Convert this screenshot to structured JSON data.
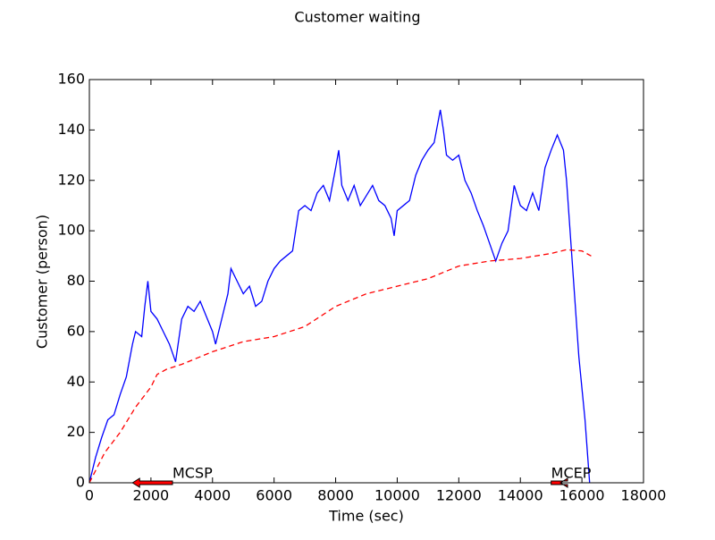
{
  "chart_data": {
    "type": "line",
    "title": "Customer waiting",
    "xlabel": "Time (sec)",
    "ylabel": "Customer (person)",
    "xlim": [
      0,
      18000
    ],
    "xticks": [
      0,
      2000,
      4000,
      6000,
      8000,
      10000,
      12000,
      14000,
      16000,
      18000
    ],
    "ylim": [
      0,
      160
    ],
    "yticks": [
      0,
      20,
      40,
      60,
      80,
      100,
      120,
      140,
      160
    ],
    "grid": false,
    "series": [
      {
        "color": "#0000ff",
        "dash": false,
        "x": [
          0,
          200,
          400,
          600,
          800,
          1000,
          1200,
          1400,
          1500,
          1700,
          1800,
          1900,
          2000,
          2200,
          2400,
          2600,
          2800,
          3000,
          3200,
          3400,
          3600,
          3800,
          4000,
          4100,
          4300,
          4500,
          4600,
          4800,
          5000,
          5200,
          5400,
          5600,
          5800,
          6000,
          6200,
          6400,
          6600,
          6800,
          7000,
          7200,
          7400,
          7600,
          7800,
          8000,
          8100,
          8200,
          8400,
          8600,
          8800,
          9000,
          9200,
          9400,
          9600,
          9800,
          9900,
          10000,
          10200,
          10400,
          10600,
          10800,
          11000,
          11200,
          11400,
          11500,
          11600,
          11800,
          12000,
          12200,
          12400,
          12600,
          12800,
          13000,
          13200,
          13400,
          13600,
          13800,
          14000,
          14200,
          14400,
          14600,
          14800,
          15000,
          15200,
          15400,
          15500,
          15700,
          15900,
          16100,
          16250
        ],
        "values": [
          0,
          10,
          18,
          25,
          27,
          35,
          42,
          55,
          60,
          58,
          70,
          80,
          68,
          65,
          60,
          55,
          48,
          65,
          70,
          68,
          72,
          66,
          60,
          55,
          65,
          75,
          85,
          80,
          75,
          78,
          70,
          72,
          80,
          85,
          88,
          90,
          92,
          108,
          110,
          108,
          115,
          118,
          112,
          125,
          132,
          118,
          112,
          118,
          110,
          114,
          118,
          112,
          110,
          105,
          98,
          108,
          110,
          112,
          122,
          128,
          132,
          135,
          148,
          140,
          130,
          128,
          130,
          120,
          115,
          108,
          102,
          95,
          88,
          95,
          100,
          118,
          110,
          108,
          115,
          108,
          125,
          132,
          138,
          132,
          120,
          85,
          50,
          25,
          0
        ]
      },
      {
        "color": "#ff0000",
        "dash": true,
        "x": [
          0,
          500,
          1000,
          1500,
          2000,
          2200,
          2500,
          3000,
          4000,
          5000,
          6000,
          7000,
          8000,
          9000,
          10000,
          11000,
          12000,
          13000,
          14000,
          15000,
          15500,
          16000,
          16300
        ],
        "values": [
          0,
          12,
          20,
          30,
          38,
          43,
          45,
          47,
          52,
          56,
          58,
          62,
          70,
          75,
          78,
          81,
          86,
          88,
          89,
          91,
          92.5,
          92,
          90
        ]
      }
    ],
    "annotations": [
      {
        "text": "MCSP",
        "x": 1400,
        "y": 0,
        "text_x": 2700
      },
      {
        "text": "MCEP",
        "x": 15300,
        "y": 0,
        "text_x": 15000
      }
    ]
  }
}
